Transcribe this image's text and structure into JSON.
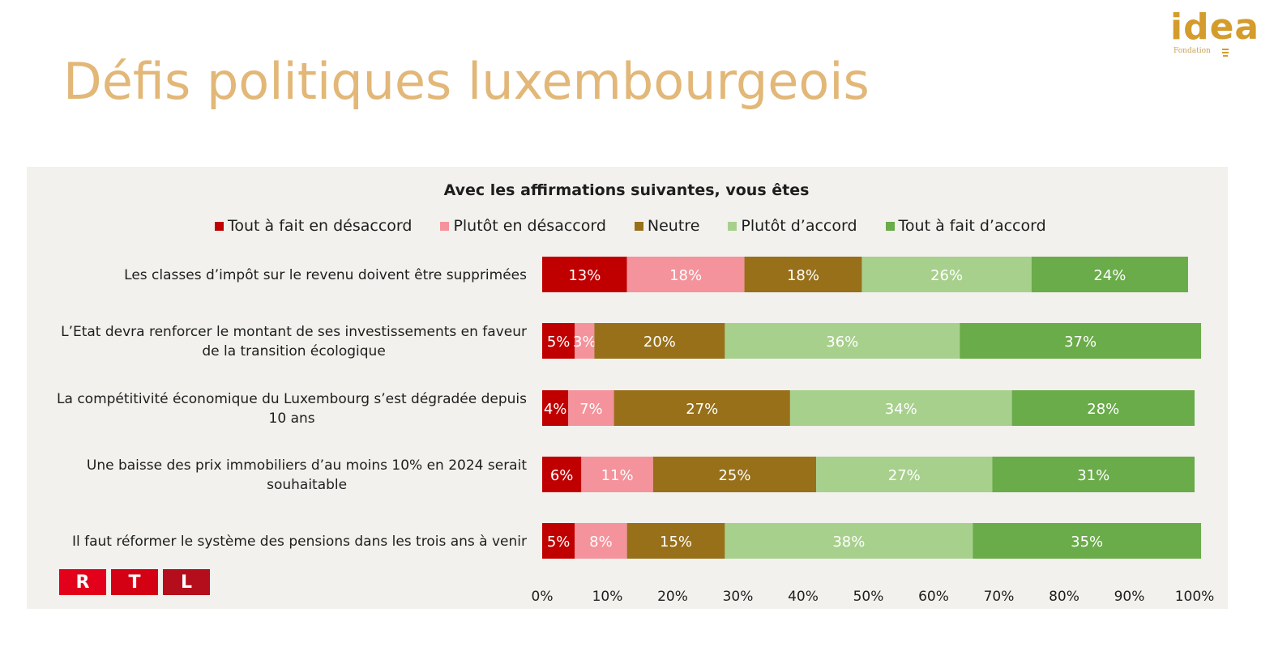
{
  "header": {
    "title": "Défis politiques luxembourgeois",
    "logo_text": "idea",
    "logo_subtext": "Fondation"
  },
  "colors": {
    "title": "#e2b777",
    "panel_bg": "#f2f1ed",
    "series": [
      "#c00000",
      "#f4939b",
      "#98701a",
      "#a8d08d",
      "#6aab4a"
    ],
    "rtl": [
      "#e2001a",
      "#d40014",
      "#b40d1c"
    ]
  },
  "branding": {
    "rtl_letters": [
      "R",
      "T",
      "L"
    ]
  },
  "chart_data": {
    "type": "bar",
    "orientation": "horizontal",
    "stacked": true,
    "title": "Avec les affirmations suivantes, vous êtes",
    "categories": [
      [
        "Les classes d’impôt sur le revenu doivent être supprimées"
      ],
      [
        "L’Etat devra renforcer le montant de ses investissements en faveur",
        "de la transition écologique"
      ],
      [
        "La compétitivité économique du Luxembourg s’est dégradée depuis",
        "10 ans"
      ],
      [
        "Une baisse des prix immobiliers d’au moins 10% en 2024 serait",
        "souhaitable"
      ],
      [
        "Il faut réformer le système des pensions dans les trois ans à venir"
      ]
    ],
    "series": [
      {
        "name": "Tout à fait en désaccord",
        "values": [
          13,
          5,
          4,
          6,
          5
        ],
        "labels": [
          "13%",
          "5%",
          "4%",
          "6%",
          "5%"
        ]
      },
      {
        "name": "Plutôt en désaccord",
        "values": [
          18,
          3,
          7,
          11,
          8
        ],
        "labels": [
          "18%",
          "3%",
          "7%",
          "11%",
          "8%"
        ]
      },
      {
        "name": "Neutre",
        "values": [
          18,
          20,
          27,
          25,
          15
        ],
        "labels": [
          "18%",
          "20%",
          "27%",
          "25%",
          "15%"
        ]
      },
      {
        "name": "Plutôt d’accord",
        "values": [
          26,
          36,
          34,
          27,
          38
        ],
        "labels": [
          "26%",
          "36%",
          "34%",
          "27%",
          "38%"
        ]
      },
      {
        "name": "Tout à fait d’accord",
        "values": [
          24,
          37,
          28,
          31,
          35
        ],
        "labels": [
          "24%",
          "37%",
          "28%",
          "31%",
          "35%"
        ]
      }
    ],
    "xlim": [
      0,
      100
    ],
    "xticks": [
      "0%",
      "10%",
      "20%",
      "30%",
      "40%",
      "50%",
      "60%",
      "70%",
      "80%",
      "90%",
      "100%"
    ],
    "grid": false,
    "legend_position": "top"
  }
}
